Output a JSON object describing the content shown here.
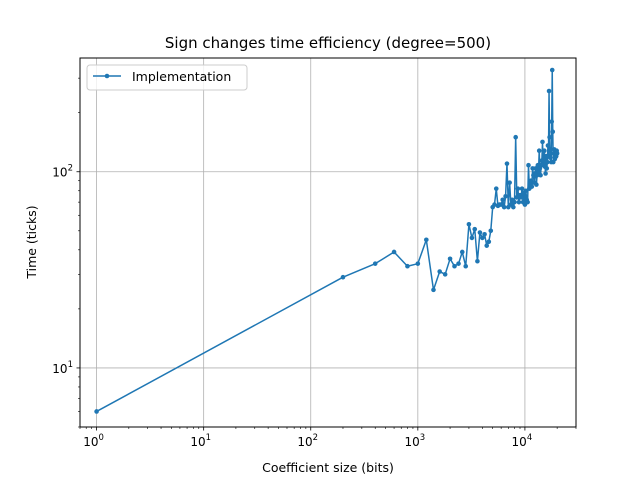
{
  "chart_data": {
    "type": "line",
    "title": "Sign changes time efficiency (degree=500)",
    "xlabel": "Coefficient size (bits)",
    "ylabel": "Time (ticks)",
    "xscale": "log",
    "yscale": "log",
    "xlim": [
      0.7,
      30000
    ],
    "ylim": [
      5,
      380
    ],
    "grid": true,
    "legend_position": "top-left",
    "xticks": [
      {
        "value": 1,
        "base": "10",
        "exp": "0"
      },
      {
        "value": 10,
        "base": "10",
        "exp": "1"
      },
      {
        "value": 100,
        "base": "10",
        "exp": "2"
      },
      {
        "value": 1000,
        "base": "10",
        "exp": "3"
      },
      {
        "value": 10000,
        "base": "10",
        "exp": "4"
      }
    ],
    "yticks": [
      {
        "value": 10,
        "base": "10",
        "exp": "1"
      },
      {
        "value": 100,
        "base": "10",
        "exp": "2"
      }
    ],
    "series": [
      {
        "name": "Implementation",
        "color": "#1f77b4",
        "x": [
          1,
          200,
          400,
          600,
          800,
          1000,
          1200,
          1400,
          1600,
          1800,
          2000,
          2200,
          2400,
          2600,
          2800,
          3000,
          3200,
          3400,
          3600,
          3800,
          4000,
          4200,
          4400,
          4600,
          4800,
          5000,
          5200,
          5400,
          5600,
          5800,
          6000,
          6200,
          6400,
          6600,
          6800,
          7000,
          7200,
          7400,
          7600,
          7800,
          8000,
          8200,
          8400,
          8600,
          8800,
          9000,
          9200,
          9400,
          9600,
          9800,
          10000,
          10200,
          10400,
          10600,
          10800,
          11000,
          11200,
          11400,
          11600,
          11800,
          12000,
          12200,
          12400,
          12600,
          12800,
          13000,
          13200,
          13400,
          13600,
          13800,
          14000,
          14200,
          14400,
          14600,
          14800,
          15000,
          15200,
          15400,
          15600,
          15800,
          16000,
          16200,
          16400,
          16600,
          16800,
          17000,
          17200,
          17400,
          17600,
          17800,
          18000,
          18200,
          18400,
          18600,
          18800,
          19000,
          19200,
          19400,
          19600,
          19800,
          20000
        ],
        "y": [
          6,
          29,
          34,
          39,
          33,
          34,
          45,
          25,
          31,
          30,
          36,
          33,
          34,
          39,
          33,
          54,
          46,
          51,
          35,
          49,
          46,
          48,
          42,
          44,
          50,
          66,
          68,
          82,
          67,
          68,
          68,
          72,
          66,
          75,
          110,
          66,
          88,
          68,
          72,
          66,
          70,
          150,
          74,
          82,
          70,
          76,
          74,
          82,
          70,
          78,
          68,
          80,
          72,
          70,
          108,
          82,
          86,
          90,
          84,
          104,
          96,
          88,
          98,
          104,
          86,
          96,
          108,
          100,
          128,
          104,
          96,
          108,
          114,
          142,
          108,
          118,
          128,
          106,
          98,
          120,
          104,
          112,
          136,
          120,
          258,
          150,
          118,
          130,
          112,
          180,
          330,
          160,
          112,
          124,
          130,
          116,
          118,
          122,
          120,
          128,
          124
        ]
      }
    ]
  }
}
